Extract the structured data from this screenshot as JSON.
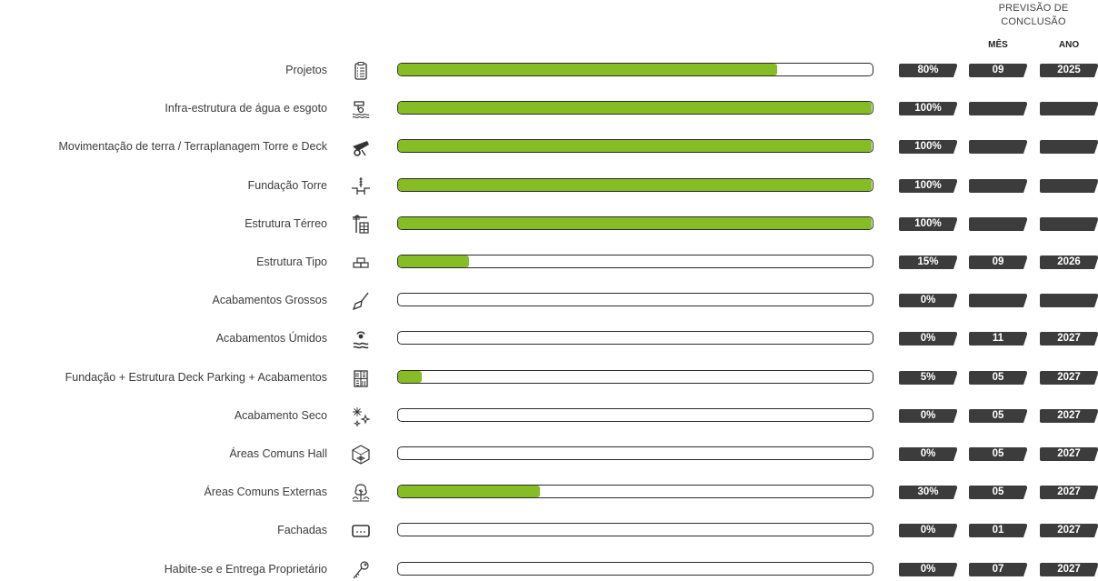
{
  "header": {
    "previsao_line1": "PREVISÃO DE",
    "previsao_line2": "CONCLUSÃO",
    "mes": "MÊS",
    "ano": "ANO"
  },
  "colors": {
    "fill": "#86bc24",
    "pill": "#3c3c3c",
    "border": "#2b2b2b"
  },
  "rows": [
    {
      "label": "Projetos",
      "icon": "clipboard-checklist-icon",
      "progress": 80,
      "pct": "80%",
      "mes": "09",
      "ano": "2025"
    },
    {
      "label": "Infra-estrutura de água e esgoto",
      "icon": "water-pipe-icon",
      "progress": 100,
      "pct": "100%",
      "mes": "",
      "ano": ""
    },
    {
      "label": "Movimentação de terra / Terraplanagem Torre e Deck",
      "icon": "wheelbarrow-icon",
      "progress": 100,
      "pct": "100%",
      "mes": "",
      "ano": ""
    },
    {
      "label": "Fundação Torre",
      "icon": "foundation-pile-icon",
      "progress": 100,
      "pct": "100%",
      "mes": "",
      "ano": ""
    },
    {
      "label": "Estrutura Térreo",
      "icon": "crane-building-icon",
      "progress": 100,
      "pct": "100%",
      "mes": "",
      "ano": ""
    },
    {
      "label": "Estrutura Tipo",
      "icon": "bricks-icon",
      "progress": 15,
      "pct": "15%",
      "mes": "09",
      "ano": "2026"
    },
    {
      "label": "Acabamentos Grossos",
      "icon": "trowel-icon",
      "progress": 0,
      "pct": "0%",
      "mes": "",
      "ano": ""
    },
    {
      "label": "Acabamentos Úmidos",
      "icon": "person-water-icon",
      "progress": 0,
      "pct": "0%",
      "mes": "11",
      "ano": "2027"
    },
    {
      "label": "Fundação + Estrutura Deck Parking + Acabamentos",
      "icon": "parquet-tiles-icon",
      "progress": 5,
      "pct": "5%",
      "mes": "05",
      "ano": "2027"
    },
    {
      "label": "Acabamento Seco",
      "icon": "sparkles-icon",
      "progress": 0,
      "pct": "0%",
      "mes": "05",
      "ano": "2027"
    },
    {
      "label": "Áreas Comuns Hall",
      "icon": "cube-floor-icon",
      "progress": 0,
      "pct": "0%",
      "mes": "05",
      "ano": "2027"
    },
    {
      "label": "Áreas Comuns Externas",
      "icon": "tree-plants-icon",
      "progress": 30,
      "pct": "30%",
      "mes": "05",
      "ano": "2027"
    },
    {
      "label": "Fachadas",
      "icon": "facade-panel-icon",
      "progress": 0,
      "pct": "0%",
      "mes": "01",
      "ano": "2027"
    },
    {
      "label": "Habite-se e Entrega Proprietário",
      "icon": "key-icon",
      "progress": 0,
      "pct": "0%",
      "mes": "07",
      "ano": "2027"
    }
  ]
}
